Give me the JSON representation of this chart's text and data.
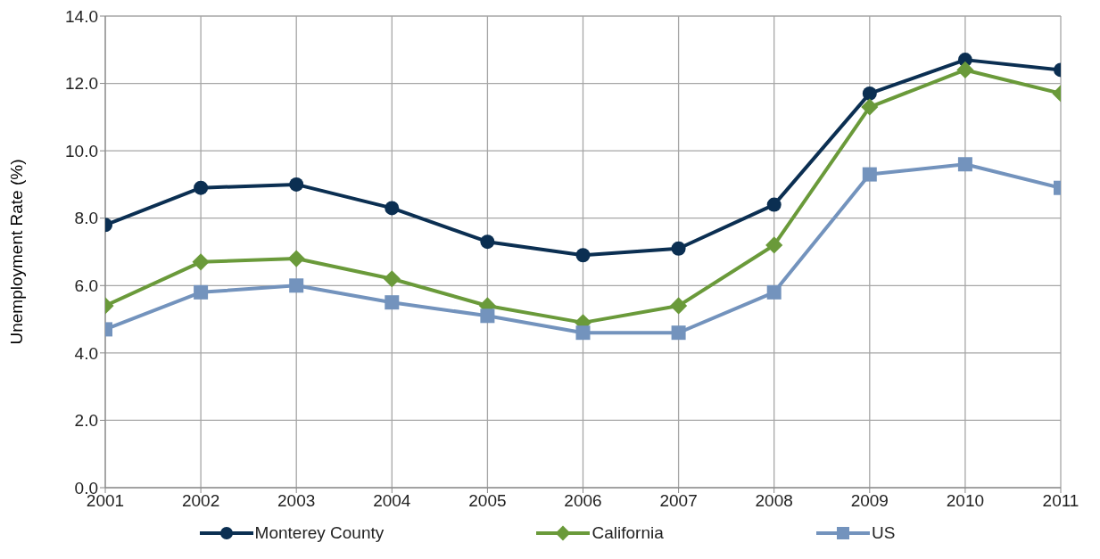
{
  "chart_data": {
    "type": "line",
    "ylabel": "Unemployment Rate (%)",
    "x": [
      2001,
      2002,
      2003,
      2004,
      2005,
      2006,
      2007,
      2008,
      2009,
      2010,
      2011
    ],
    "xlim": [
      2001,
      2011
    ],
    "xticks": [
      2001,
      2002,
      2003,
      2004,
      2005,
      2006,
      2007,
      2008,
      2009,
      2010,
      2011
    ],
    "ylim": [
      0,
      14
    ],
    "yticks": [
      {
        "value": 0,
        "label": "0.0"
      },
      {
        "value": 2,
        "label": "2.0"
      },
      {
        "value": 4,
        "label": "4.0"
      },
      {
        "value": 6,
        "label": "6.0"
      },
      {
        "value": 8,
        "label": "8.0"
      },
      {
        "value": 10,
        "label": "10.0"
      },
      {
        "value": 12,
        "label": "12.0"
      },
      {
        "value": 14,
        "label": "14.0"
      }
    ],
    "grid": true,
    "legend": "bottom",
    "line_style": "solid",
    "series": [
      {
        "name": "Monterey County",
        "color": "#0b2f52",
        "marker": "circle",
        "values": [
          7.8,
          8.9,
          9.0,
          8.3,
          7.3,
          6.9,
          7.1,
          8.4,
          11.7,
          12.7,
          12.4
        ]
      },
      {
        "name": "California",
        "color": "#6a9a3a",
        "marker": "diamond",
        "values": [
          5.4,
          6.7,
          6.8,
          6.2,
          5.4,
          4.9,
          5.4,
          7.2,
          11.3,
          12.4,
          11.7
        ]
      },
      {
        "name": "US",
        "color": "#7393bd",
        "marker": "square",
        "values": [
          4.7,
          5.8,
          6.0,
          5.5,
          5.1,
          4.6,
          4.6,
          5.8,
          9.3,
          9.6,
          8.9
        ]
      }
    ]
  }
}
